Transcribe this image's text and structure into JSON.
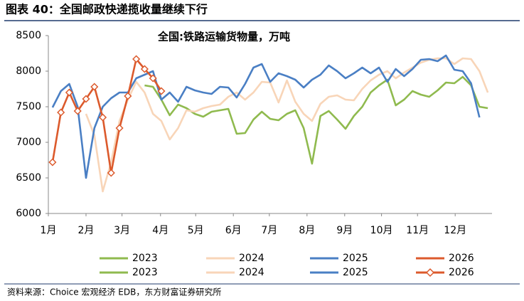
{
  "header": {
    "title": "图表 40：全国邮政快递揽收量继续下行"
  },
  "source": "资料来源：Choice 宏观经济 EDB，东方财富证券研究所",
  "chart_data": {
    "type": "line",
    "title": "全国:铁路运输货物量，万吨",
    "x": [
      1,
      2,
      3,
      4,
      5,
      6,
      7,
      8,
      9,
      10,
      11,
      12,
      13,
      14,
      15,
      16,
      17,
      18,
      19,
      20,
      21,
      22,
      23,
      24,
      25,
      26,
      27,
      28,
      29,
      30,
      31,
      32,
      33,
      34,
      35,
      36,
      37,
      38,
      39,
      40,
      41,
      42,
      43,
      44,
      45,
      46,
      47,
      48,
      49,
      50,
      51,
      52,
      53
    ],
    "xlim": [
      0.5,
      53.5
    ],
    "xticks": [
      {
        "value": 0.5,
        "label": "1月"
      },
      {
        "value": 5.0,
        "label": "2月"
      },
      {
        "value": 9.3,
        "label": "3月"
      },
      {
        "value": 13.9,
        "label": "4月"
      },
      {
        "value": 18.1,
        "label": "5月"
      },
      {
        "value": 22.6,
        "label": "6月"
      },
      {
        "value": 26.9,
        "label": "7月"
      },
      {
        "value": 31.4,
        "label": "8月"
      },
      {
        "value": 35.9,
        "label": "9月"
      },
      {
        "value": 40.3,
        "label": "10月"
      },
      {
        "value": 44.6,
        "label": "11月"
      },
      {
        "value": 49.1,
        "label": "12月"
      }
    ],
    "ylim": [
      6000,
      8500
    ],
    "yticks": [
      6000,
      6500,
      7000,
      7500,
      8000,
      8500
    ],
    "series": [
      {
        "name": "2023",
        "color": "#8fba4e",
        "values": [
          null,
          null,
          null,
          null,
          null,
          null,
          null,
          null,
          null,
          null,
          null,
          7800,
          7780,
          7600,
          7380,
          7530,
          7480,
          7400,
          7360,
          7430,
          7450,
          7470,
          7120,
          7130,
          7320,
          7430,
          7330,
          7310,
          7400,
          7450,
          7200,
          6700,
          7370,
          7440,
          7320,
          7190,
          7370,
          7500,
          7700,
          7800,
          7880,
          7520,
          7600,
          7720,
          7670,
          7640,
          7730,
          7840,
          7830,
          7920,
          7800,
          7500,
          7480
        ]
      },
      {
        "name": "2024",
        "color": "#f8d5b8",
        "values": [
          null,
          null,
          null,
          null,
          7400,
          7100,
          6310,
          6720,
          7300,
          7600,
          7850,
          7700,
          7400,
          7300,
          7040,
          7200,
          7450,
          7430,
          7480,
          7510,
          7530,
          7640,
          7700,
          7600,
          7700,
          7850,
          7840,
          7560,
          7870,
          7570,
          7400,
          7300,
          7540,
          7640,
          7660,
          7600,
          7590,
          7750,
          7870,
          7950,
          8000,
          7900,
          7980,
          8050,
          8120,
          8160,
          8180,
          8180,
          8100,
          8180,
          8170,
          8000,
          7700
        ]
      },
      {
        "name": "2025",
        "color": "#4a7fc4",
        "values": [
          7490,
          7720,
          7820,
          7500,
          6500,
          7200,
          7500,
          7620,
          7700,
          7700,
          7900,
          7950,
          8000,
          7600,
          7700,
          7570,
          7780,
          7730,
          7700,
          7680,
          7780,
          7770,
          7630,
          7820,
          8050,
          8100,
          7850,
          7970,
          7930,
          7880,
          7770,
          7880,
          7950,
          8080,
          8000,
          7900,
          7970,
          8050,
          7970,
          8050,
          7850,
          8030,
          7930,
          8030,
          8160,
          8170,
          8140,
          8220,
          8020,
          8000,
          7830,
          7350,
          null
        ]
      },
      {
        "name": "2026",
        "color": "#dc5a2c",
        "marker": "diamond",
        "values": [
          6720,
          7420,
          7700,
          7440,
          7610,
          7780,
          7350,
          6570,
          7200,
          7650,
          8170,
          8030,
          7900,
          7720,
          null,
          null,
          null,
          null,
          null,
          null,
          null,
          null,
          null,
          null,
          null,
          null,
          null,
          null,
          null,
          null,
          null,
          null,
          null,
          null,
          null,
          null,
          null,
          null,
          null,
          null,
          null,
          null,
          null,
          null,
          null,
          null,
          null,
          null,
          null,
          null,
          null,
          null,
          null
        ]
      }
    ]
  }
}
